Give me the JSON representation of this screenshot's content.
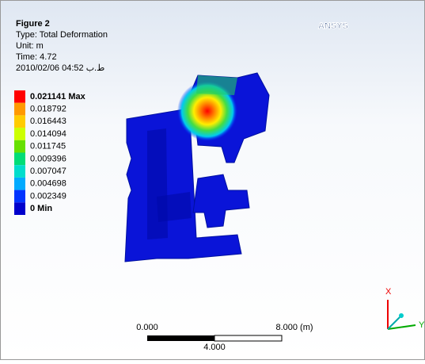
{
  "header": {
    "figure": "Figure 2",
    "type": "Type: Total Deformation",
    "unit": "Unit: m",
    "time": "Time: 4.72",
    "date": "2010/02/06 04:52 ط.ب"
  },
  "legend": [
    {
      "label": "0.021141 Max",
      "color": "#ff0000"
    },
    {
      "label": "0.018792",
      "color": "#ff9900"
    },
    {
      "label": "0.016443",
      "color": "#ffcc00"
    },
    {
      "label": "0.014094",
      "color": "#ccff00"
    },
    {
      "label": "0.011745",
      "color": "#66e000"
    },
    {
      "label": "0.009396",
      "color": "#00dd77"
    },
    {
      "label": "0.007047",
      "color": "#00ddcc"
    },
    {
      "label": "0.004698",
      "color": "#00aaff"
    },
    {
      "label": "0.002349",
      "color": "#0033ff"
    },
    {
      "label": "0 Min",
      "color": "#0000cc"
    }
  ],
  "logo": "ANSYS",
  "scale_bar": {
    "start": "0.000",
    "end": "8.000 (m)",
    "middle": "4.000"
  },
  "triad": {
    "x": "X",
    "y": "Y"
  }
}
